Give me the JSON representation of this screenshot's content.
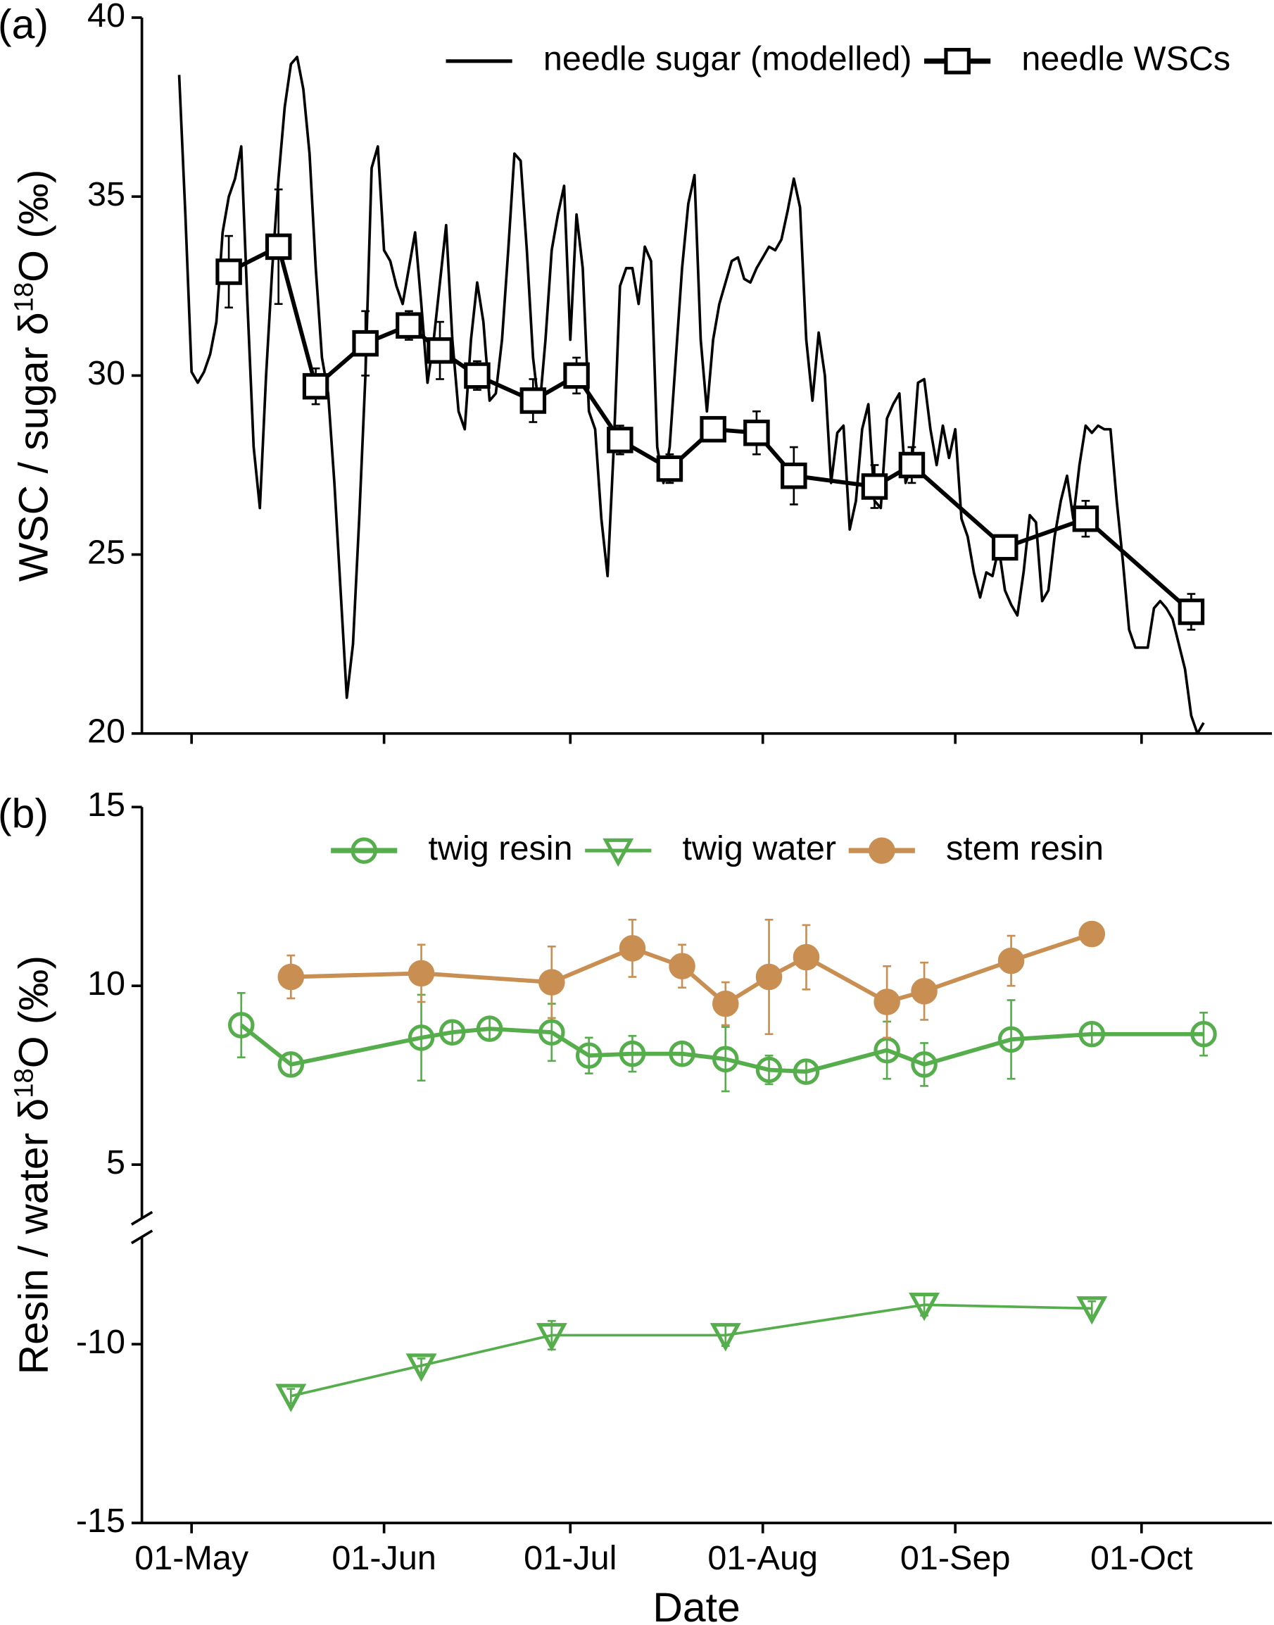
{
  "chart_data": [
    {
      "type": "line",
      "panel_label": "(a)",
      "y_label": [
        "WSC / sugar δ",
        "18",
        "O (‰)"
      ],
      "xlim": [
        "23-Apr",
        "22-Oct"
      ],
      "xticks": [
        "01-May",
        "01-Jun",
        "01-Jul",
        "01-Aug",
        "01-Sep",
        "01-Oct"
      ],
      "show_xtick_labels": false,
      "ylim": [
        20,
        40
      ],
      "yticks": [
        20,
        25,
        30,
        35,
        40
      ],
      "legend": "upper right",
      "series": [
        {
          "name": "needle sugar (modelled)",
          "color": "#000000",
          "marker": "none",
          "filled": false,
          "x": [
            "29-Apr",
            "30-Apr",
            "01-May",
            "02-May",
            "03-May",
            "04-May",
            "05-May",
            "06-May",
            "07-May",
            "08-May",
            "09-May",
            "10-May",
            "11-May",
            "12-May",
            "13-May",
            "14-May",
            "15-May",
            "16-May",
            "17-May",
            "18-May",
            "19-May",
            "20-May",
            "21-May",
            "22-May",
            "23-May",
            "24-May",
            "25-May",
            "26-May",
            "27-May",
            "28-May",
            "29-May",
            "30-May",
            "31-May",
            "01-Jun",
            "02-Jun",
            "03-Jun",
            "04-Jun",
            "05-Jun",
            "06-Jun",
            "07-Jun",
            "08-Jun",
            "09-Jun",
            "10-Jun",
            "11-Jun",
            "12-Jun",
            "13-Jun",
            "14-Jun",
            "15-Jun",
            "16-Jun",
            "17-Jun",
            "18-Jun",
            "19-Jun",
            "20-Jun",
            "21-Jun",
            "22-Jun",
            "23-Jun",
            "24-Jun",
            "25-Jun",
            "26-Jun",
            "27-Jun",
            "28-Jun",
            "29-Jun",
            "30-Jun",
            "01-Jul",
            "02-Jul",
            "03-Jul",
            "04-Jul",
            "05-Jul",
            "06-Jul",
            "07-Jul",
            "08-Jul",
            "09-Jul",
            "10-Jul",
            "11-Jul",
            "12-Jul",
            "13-Jul",
            "14-Jul",
            "15-Jul",
            "16-Jul",
            "17-Jul",
            "18-Jul",
            "19-Jul",
            "20-Jul",
            "21-Jul",
            "22-Jul",
            "23-Jul",
            "24-Jul",
            "25-Jul",
            "26-Jul",
            "27-Jul",
            "28-Jul",
            "29-Jul",
            "30-Jul",
            "31-Jul",
            "01-Aug",
            "02-Aug",
            "03-Aug",
            "04-Aug",
            "05-Aug",
            "06-Aug",
            "07-Aug",
            "08-Aug",
            "09-Aug",
            "10-Aug",
            "11-Aug",
            "12-Aug",
            "13-Aug",
            "14-Aug",
            "15-Aug",
            "16-Aug",
            "17-Aug",
            "18-Aug",
            "19-Aug",
            "20-Aug",
            "21-Aug",
            "22-Aug",
            "23-Aug",
            "24-Aug",
            "25-Aug",
            "26-Aug",
            "27-Aug",
            "28-Aug",
            "29-Aug",
            "30-Aug",
            "31-Aug",
            "01-Sep",
            "02-Sep",
            "03-Sep",
            "04-Sep",
            "05-Sep",
            "06-Sep",
            "07-Sep",
            "08-Sep",
            "09-Sep",
            "10-Sep",
            "11-Sep",
            "12-Sep",
            "13-Sep",
            "14-Sep",
            "15-Sep",
            "16-Sep",
            "17-Sep",
            "18-Sep",
            "19-Sep",
            "20-Sep",
            "21-Sep",
            "22-Sep",
            "23-Sep",
            "24-Sep",
            "25-Sep",
            "26-Sep",
            "27-Sep",
            "28-Sep",
            "29-Sep",
            "30-Sep",
            "01-Oct",
            "02-Oct",
            "03-Oct",
            "04-Oct",
            "05-Oct",
            "06-Oct",
            "07-Oct",
            "08-Oct",
            "09-Oct",
            "10-Oct",
            "11-Oct"
          ],
          "values": [
            38.4,
            34.5,
            30.1,
            29.8,
            30.1,
            30.6,
            31.5,
            34.0,
            35.0,
            35.5,
            36.4,
            32.0,
            28.0,
            26.3,
            30.0,
            33.0,
            35.5,
            37.5,
            38.7,
            38.9,
            38.0,
            36.2,
            33.0,
            30.5,
            29.5,
            27.0,
            24.0,
            21.0,
            22.5,
            26.0,
            30.0,
            35.8,
            36.4,
            33.5,
            33.2,
            32.5,
            32.0,
            33.0,
            34.0,
            32.0,
            29.8,
            31.0,
            32.6,
            34.2,
            31.0,
            29.0,
            28.5,
            31.0,
            32.6,
            31.5,
            29.3,
            29.5,
            31.0,
            33.5,
            36.2,
            36.0,
            33.5,
            30.5,
            29.0,
            31.0,
            33.5,
            34.5,
            35.3,
            31.0,
            34.5,
            33.0,
            29.0,
            28.5,
            26.0,
            24.4,
            28.0,
            32.5,
            33.0,
            33.0,
            32.0,
            33.6,
            33.2,
            28.0,
            27.0,
            28.0,
            30.5,
            33.0,
            34.8,
            35.6,
            31.0,
            29.0,
            31.0,
            32.0,
            32.6,
            33.2,
            33.3,
            32.7,
            32.6,
            33.0,
            33.3,
            33.6,
            33.5,
            33.8,
            34.6,
            35.5,
            34.7,
            31.0,
            29.3,
            31.2,
            30.0,
            27.0,
            28.4,
            28.6,
            25.7,
            26.5,
            28.5,
            29.2,
            26.5,
            26.3,
            28.8,
            29.2,
            29.5,
            27.0,
            27.5,
            29.8,
            29.9,
            28.5,
            27.5,
            28.6,
            27.7,
            28.5,
            26.0,
            25.5,
            24.5,
            23.8,
            24.5,
            24.4,
            25.2,
            24.0,
            23.6,
            23.3,
            24.5,
            26.1,
            25.9,
            23.7,
            24.0,
            25.5,
            26.5,
            27.2,
            26.0,
            27.5,
            28.6,
            28.4,
            28.6,
            28.5,
            28.5,
            26.5,
            24.8,
            22.9,
            22.4,
            22.4,
            22.4,
            23.5,
            23.7,
            23.5,
            23.2,
            22.5,
            21.8,
            20.5,
            20.0,
            20.3
          ]
        },
        {
          "name": "needle WSCs",
          "color": "#000000",
          "marker": "square",
          "filled": false,
          "x": [
            "07-May",
            "15-May",
            "21-May",
            "29-May",
            "05-Jun",
            "10-Jun",
            "16-Jun",
            "25-Jun",
            "02-Jul",
            "09-Jul",
            "17-Jul",
            "24-Jul",
            "31-Jul",
            "06-Aug",
            "19-Aug",
            "25-Aug",
            "09-Sep",
            "22-Sep",
            "09-Oct"
          ],
          "values": [
            32.9,
            33.6,
            29.7,
            30.9,
            31.4,
            30.7,
            30.0,
            29.3,
            30.0,
            28.2,
            27.4,
            28.5,
            28.4,
            27.2,
            26.9,
            27.5,
            25.2,
            26.0,
            23.4
          ],
          "errors": [
            1.0,
            1.6,
            0.5,
            0.9,
            0.4,
            0.8,
            0.4,
            0.6,
            0.5,
            0.4,
            0.4,
            0.3,
            0.6,
            0.8,
            0.6,
            0.5,
            0.3,
            0.5,
            0.5
          ]
        }
      ]
    },
    {
      "type": "line",
      "panel_label": "(b)",
      "y_label": [
        "Resin / water δ",
        "18",
        "O (‰)"
      ],
      "x_label": "Date",
      "xlim": [
        "23-Apr",
        "22-Oct"
      ],
      "xticks": [
        "01-May",
        "01-Jun",
        "01-Jul",
        "01-Aug",
        "01-Sep",
        "01-Oct"
      ],
      "show_xtick_labels": true,
      "ylim": [
        -15,
        15
      ],
      "ybreak": [
        -7,
        3.5
      ],
      "yticks": [
        -15,
        -10,
        5,
        10,
        15
      ],
      "legend": "upper center",
      "series": [
        {
          "name": "twig resin",
          "color": "#55ad4c",
          "marker": "circle",
          "filled": false,
          "x": [
            "09-May",
            "17-May",
            "07-Jun",
            "12-Jun",
            "18-Jun",
            "28-Jun",
            "04-Jul",
            "11-Jul",
            "19-Jul",
            "26-Jul",
            "02-Aug",
            "08-Aug",
            "21-Aug",
            "27-Aug",
            "10-Sep",
            "23-Sep",
            "11-Oct"
          ],
          "values": [
            8.9,
            7.8,
            8.55,
            8.7,
            8.8,
            8.7,
            8.05,
            8.1,
            8.1,
            7.95,
            7.65,
            7.6,
            8.2,
            7.8,
            8.5,
            8.65,
            8.65
          ],
          "errors": [
            0.9,
            0.3,
            1.2,
            0.3,
            0.3,
            0.8,
            0.5,
            0.5,
            0.3,
            0.9,
            0.4,
            0.3,
            0.8,
            0.6,
            1.1,
            0.3,
            0.6
          ]
        },
        {
          "name": "twig water",
          "color": "#55ad4c",
          "marker": "triangle",
          "filled": false,
          "x": [
            "17-May",
            "07-Jun",
            "28-Jun",
            "26-Jul",
            "27-Aug",
            "23-Sep"
          ],
          "values": [
            -11.45,
            -10.6,
            -9.75,
            -9.75,
            -8.9,
            -9.0
          ],
          "errors": [
            0.2,
            0.2,
            0.4,
            0.3,
            0.3,
            0.2
          ]
        },
        {
          "name": "stem resin",
          "color": "#c98f52",
          "marker": "circle",
          "filled": true,
          "x": [
            "17-May",
            "07-Jun",
            "28-Jun",
            "11-Jul",
            "19-Jul",
            "26-Jul",
            "02-Aug",
            "08-Aug",
            "21-Aug",
            "27-Aug",
            "10-Sep",
            "23-Sep"
          ],
          "values": [
            10.25,
            10.35,
            10.1,
            11.05,
            10.55,
            9.5,
            10.25,
            10.8,
            9.55,
            9.85,
            10.7,
            11.45
          ],
          "errors": [
            0.6,
            0.8,
            1.0,
            0.8,
            0.6,
            0.6,
            1.6,
            0.9,
            1.0,
            0.8,
            0.7,
            0.2
          ]
        }
      ]
    }
  ]
}
